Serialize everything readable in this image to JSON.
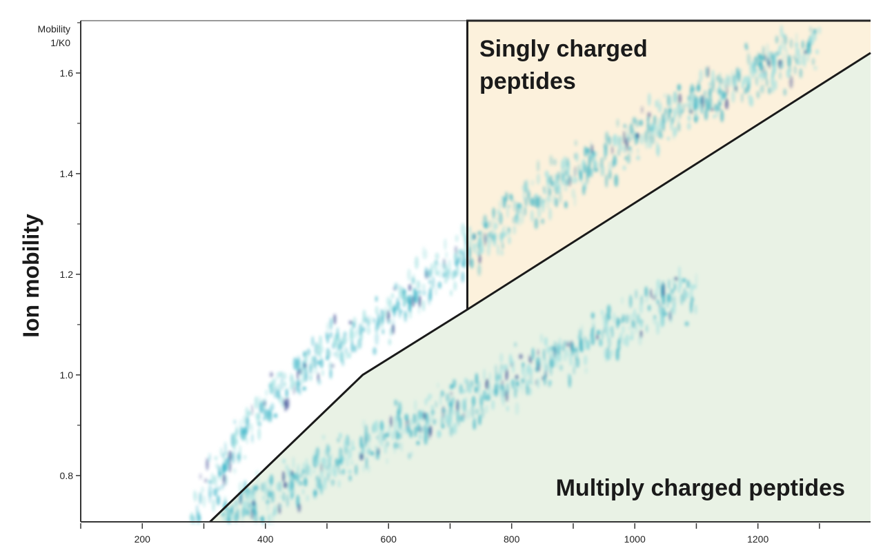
{
  "chart_data": {
    "type": "heatmap",
    "title": "",
    "xlabel": "",
    "ylabel": "Ion mobility",
    "y_unit_label": [
      "Mobility",
      "1/K0"
    ],
    "xlim": [
      100,
      1383
    ],
    "ylim": [
      0.708,
      1.704
    ],
    "x_ticks": [
      200,
      400,
      600,
      800,
      1000,
      1200
    ],
    "x_minor_ticks": [
      100,
      300,
      500,
      700,
      900,
      1100,
      1300
    ],
    "y_ticks": [
      0.8,
      1.0,
      1.2,
      1.4,
      1.6
    ],
    "y_minor_ticks": [
      0.9,
      1.1,
      1.3,
      1.5,
      1.7
    ],
    "grid": false,
    "colors": {
      "signal_low": "#9fe0e0",
      "signal_mid": "#2fb0c4",
      "signal_high": "#2a3c8c",
      "singly_region": "#fcf1dc",
      "multiply_region": "#e9f2e5",
      "boundary": "#1a1a1a"
    },
    "regions": [
      {
        "name": "Singly charged peptides",
        "label_lines": [
          "Singly charged",
          "peptides"
        ],
        "polygon": [
          [
            728,
            1.704
          ],
          [
            1383,
            1.704
          ],
          [
            1383,
            1.64
          ],
          [
            728,
            1.13
          ]
        ]
      },
      {
        "name": "Multiply charged peptides",
        "label_lines": [
          "Multiply charged peptides"
        ],
        "polygon": [
          [
            310,
            0.708
          ],
          [
            558,
            1.0
          ],
          [
            728,
            1.13
          ],
          [
            1383,
            1.64
          ],
          [
            1383,
            0.708
          ]
        ]
      }
    ],
    "series": [
      {
        "points": [
          [
            280,
            0.72
          ],
          [
            400,
            0.95
          ],
          [
            500,
            1.05
          ],
          [
            600,
            1.12
          ],
          [
            700,
            1.22
          ],
          [
            800,
            1.32
          ],
          [
            900,
            1.4
          ],
          [
            1000,
            1.47
          ],
          [
            1100,
            1.54
          ],
          [
            1200,
            1.6
          ],
          [
            1300,
            1.67
          ]
        ]
      },
      {
        "points": [
          [
            330,
            0.71
          ],
          [
            420,
            0.76
          ],
          [
            500,
            0.82
          ],
          [
            600,
            0.88
          ],
          [
            700,
            0.93
          ],
          [
            800,
            0.99
          ],
          [
            900,
            1.05
          ],
          [
            1000,
            1.11
          ],
          [
            1100,
            1.18
          ]
        ]
      }
    ]
  }
}
